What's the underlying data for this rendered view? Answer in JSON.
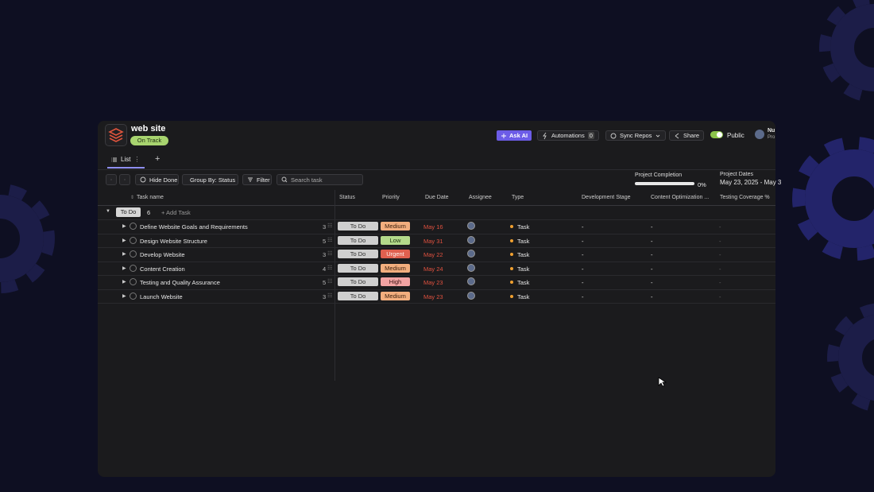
{
  "header": {
    "title": "web site",
    "status": "On Track",
    "ask_ai": "Ask AI",
    "automations": "Automations",
    "automations_count": "0",
    "sync": "Sync Repos",
    "share": "Share",
    "visibility": "Public",
    "user_name": "Nu",
    "user_role": "Pro"
  },
  "tabs": {
    "active": "List"
  },
  "toolbar": {
    "hide_done": "Hide Done",
    "group_by": "Group By: Status",
    "filter": "Filter",
    "search_placeholder": "Search task"
  },
  "project": {
    "completion_label": "Project Completion",
    "completion": "0%",
    "dates_label": "Project Dates",
    "dates": "May 23, 2025 - May 3"
  },
  "table": {
    "columns": [
      "Task name",
      "Status",
      "Priority",
      "Due Date",
      "Assignee",
      "Type",
      "Development Stage",
      "Content Optimization ...",
      "Testing Coverage %"
    ],
    "group": {
      "name": "To Do",
      "count": "6",
      "add": "+ Add Task"
    },
    "rows": [
      {
        "name": "Define Website Goals and Requirements",
        "subtasks": "3",
        "status": "To Do",
        "priority": "Medium",
        "due": "May 16",
        "type": "Task",
        "development_stage": "-",
        "content_optimization": "-",
        "testing_coverage": "-"
      },
      {
        "name": "Design Website Structure",
        "subtasks": "5",
        "status": "To Do",
        "priority": "Low",
        "due": "May 31",
        "type": "Task",
        "development_stage": "-",
        "content_optimization": "-",
        "testing_coverage": "-"
      },
      {
        "name": "Develop Website",
        "subtasks": "3",
        "status": "To Do",
        "priority": "Urgent",
        "due": "May 22",
        "type": "Task",
        "development_stage": "-",
        "content_optimization": "-",
        "testing_coverage": "-"
      },
      {
        "name": "Content Creation",
        "subtasks": "4",
        "status": "To Do",
        "priority": "Medium",
        "due": "May 24",
        "type": "Task",
        "development_stage": "-",
        "content_optimization": "-",
        "testing_coverage": "-"
      },
      {
        "name": "Testing and Quality Assurance",
        "subtasks": "5",
        "status": "To Do",
        "priority": "High",
        "due": "May 23",
        "type": "Task",
        "development_stage": "-",
        "content_optimization": "-",
        "testing_coverage": "-"
      },
      {
        "name": "Launch Website",
        "subtasks": "3",
        "status": "To Do",
        "priority": "Medium",
        "due": "May 23",
        "type": "Task",
        "development_stage": "-",
        "content_optimization": "-",
        "testing_coverage": "-"
      }
    ]
  }
}
